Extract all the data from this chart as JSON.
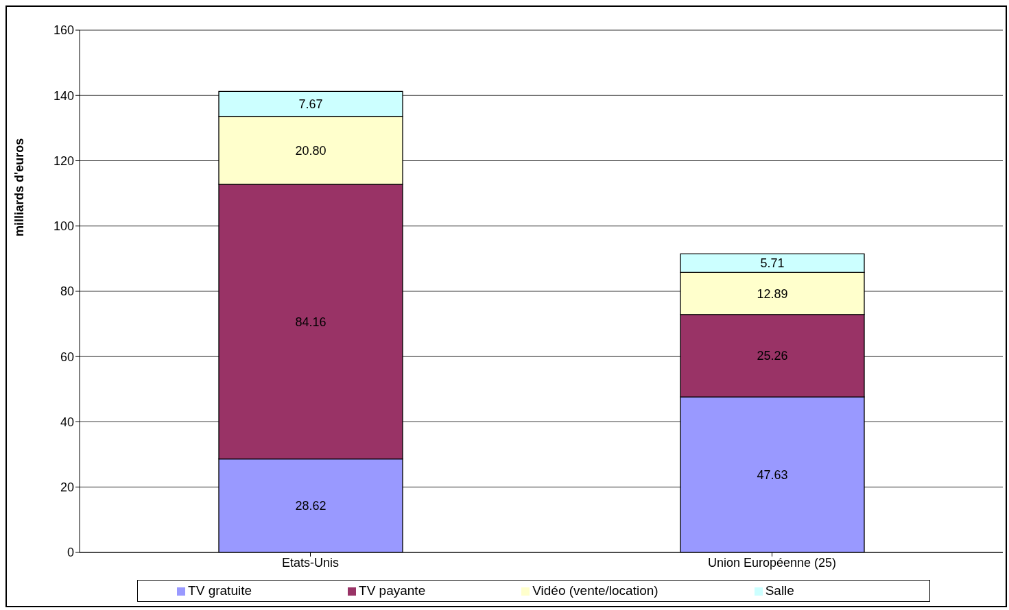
{
  "chart_data": {
    "type": "bar",
    "stacked": true,
    "ylabel": "milliards d'euros",
    "categories": [
      "Etats-Unis",
      "Union Européenne (25)"
    ],
    "ylim": [
      0,
      160
    ],
    "yticks": [
      0,
      20,
      40,
      60,
      80,
      100,
      120,
      140,
      160
    ],
    "grid": "y",
    "legend": "bottom",
    "series": [
      {
        "name": "TV gratuite",
        "color": "#9999ff",
        "values": [
          28.62,
          47.63
        ],
        "value_labels": [
          "28.62",
          "47.63"
        ]
      },
      {
        "name": "TV payante",
        "color": "#993366",
        "values": [
          84.16,
          25.26
        ],
        "value_labels": [
          "84.16",
          "25.26"
        ]
      },
      {
        "name": "Vidéo (vente/location)",
        "color": "#ffffcc",
        "values": [
          20.8,
          12.89
        ],
        "value_labels": [
          "20.80",
          "12.89"
        ]
      },
      {
        "name": "Salle",
        "color": "#ccffff",
        "values": [
          7.67,
          5.71
        ],
        "value_labels": [
          "7.67",
          "5.71"
        ]
      }
    ]
  }
}
